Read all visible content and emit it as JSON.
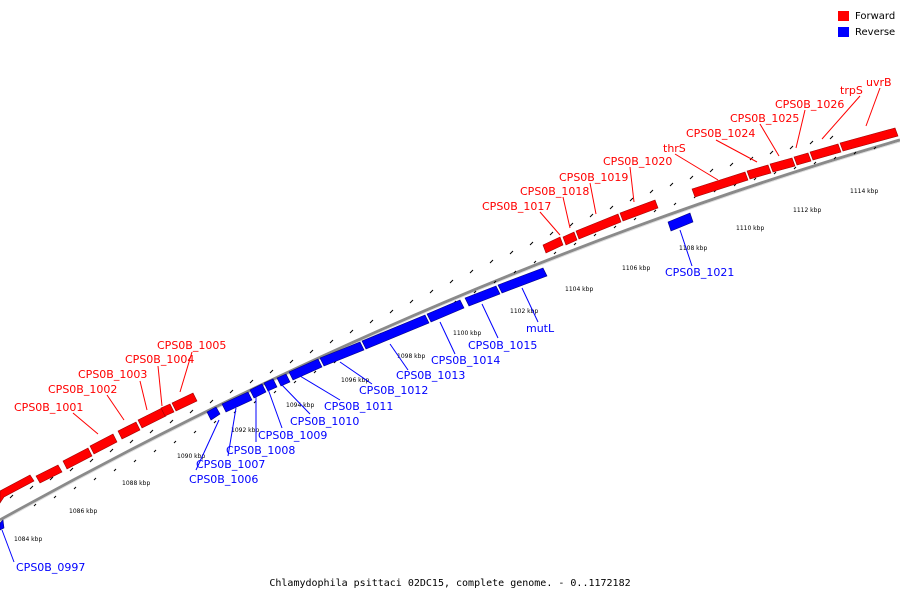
{
  "legend": {
    "forward_label": "Forward",
    "reverse_label": "Reverse",
    "forward_color": "#ff0000",
    "reverse_color": "#0000ff"
  },
  "caption": "Chlamydophila psittaci 02DC15, complete genome. - 0..1172182",
  "scale_labels": [
    "1084 kbp",
    "1086 kbp",
    "1088 kbp",
    "1090 kbp",
    "1092 kbp",
    "1094 kbp",
    "1096 kbp",
    "1098 kbp",
    "1100 kbp",
    "1102 kbp",
    "1104 kbp",
    "1106 kbp",
    "1108 kbp",
    "1110 kbp",
    "1112 kbp",
    "1114 kbp"
  ],
  "genes_forward": [
    "CPS0B_1001",
    "CPS0B_1002",
    "CPS0B_1003",
    "CPS0B_1004",
    "CPS0B_1005",
    "CPS0B_1017",
    "CPS0B_1018",
    "CPS0B_1019",
    "CPS0B_1020",
    "thrS",
    "CPS0B_1024",
    "CPS0B_1025",
    "CPS0B_1026",
    "trpS",
    "uvrB"
  ],
  "genes_reverse": [
    "CPS0B_0997",
    "CPS0B_1006",
    "CPS0B_1007",
    "CPS0B_1008",
    "CPS0B_1009",
    "CPS0B_1010",
    "CPS0B_1011",
    "CPS0B_1012",
    "CPS0B_1013",
    "CPS0B_1014",
    "CPS0B_1015",
    "mutL",
    "CPS0B_1021"
  ]
}
